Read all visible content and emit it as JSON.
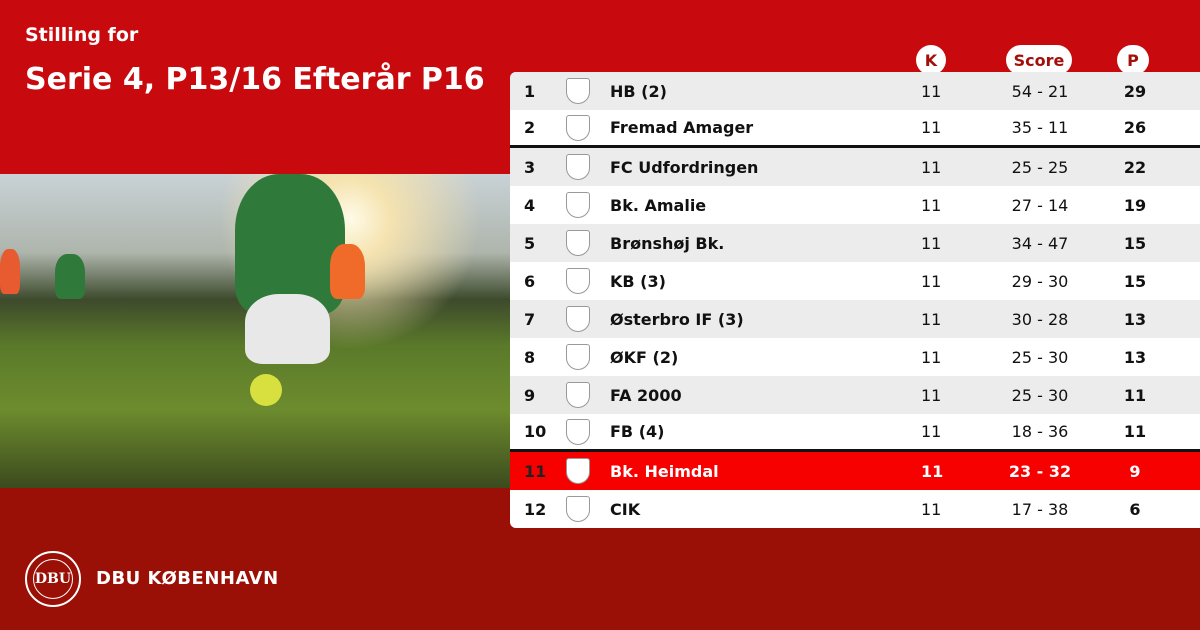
{
  "header": {
    "subtitle": "Stilling for",
    "title": "Serie 4, P13/16 Efterår P16"
  },
  "columns": {
    "k": "K",
    "score": "Score",
    "p": "P"
  },
  "rows": [
    {
      "rank": "1",
      "team": "HB (2)",
      "k": "11",
      "score": "54 - 21",
      "p": "29"
    },
    {
      "rank": "2",
      "team": "Fremad Amager",
      "k": "11",
      "score": "35 - 11",
      "p": "26"
    },
    {
      "rank": "3",
      "team": "FC Udfordringen",
      "k": "11",
      "score": "25 - 25",
      "p": "22"
    },
    {
      "rank": "4",
      "team": "Bk. Amalie",
      "k": "11",
      "score": "27 - 14",
      "p": "19"
    },
    {
      "rank": "5",
      "team": "Brønshøj Bk.",
      "k": "11",
      "score": "34 - 47",
      "p": "15"
    },
    {
      "rank": "6",
      "team": "KB (3)",
      "k": "11",
      "score": "29 - 30",
      "p": "15"
    },
    {
      "rank": "7",
      "team": "Østerbro IF (3)",
      "k": "11",
      "score": "30 - 28",
      "p": "13"
    },
    {
      "rank": "8",
      "team": "ØKF (2)",
      "k": "11",
      "score": "25 - 30",
      "p": "13"
    },
    {
      "rank": "9",
      "team": "FA 2000",
      "k": "11",
      "score": "25 - 30",
      "p": "11"
    },
    {
      "rank": "10",
      "team": "FB (4)",
      "k": "11",
      "score": "18 - 36",
      "p": "11"
    },
    {
      "rank": "11",
      "team": "Bk. Heimdal",
      "k": "11",
      "score": "23 - 32",
      "p": "9"
    },
    {
      "rank": "12",
      "team": "CIK",
      "k": "11",
      "score": "17 - 38",
      "p": "6"
    }
  ],
  "highlight_rank": "11",
  "separators_after": [
    "2",
    "10"
  ],
  "footer": {
    "brand": "DBU KØBENHAVN",
    "seal_text": "DBU"
  },
  "colors": {
    "primary_red": "#c8090d",
    "dark_red": "#9b1006",
    "highlight": "#f70000"
  }
}
